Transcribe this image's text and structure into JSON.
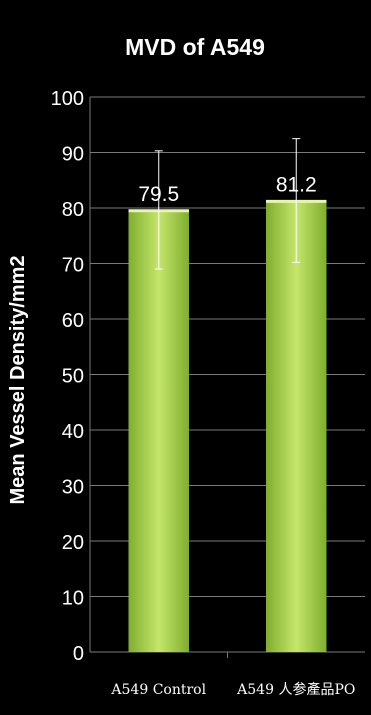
{
  "colors": {
    "background": "#000000",
    "bar_light": "#c5e66b",
    "bar_dark": "#7fae2e",
    "text": "#ffffff",
    "grid": "#7a7a7a",
    "error_bar": "#ffffff"
  },
  "chart_data": {
    "type": "bar",
    "title": "MVD of  A549",
    "xlabel": "",
    "ylabel": "Mean Vessel Density/mm2",
    "ylim": [
      0,
      100
    ],
    "yticks": [
      0,
      10,
      20,
      30,
      40,
      50,
      60,
      70,
      80,
      90,
      100
    ],
    "grid": true,
    "categories": [
      "A549 Control",
      "A549 人参產品PO"
    ],
    "values": [
      79.5,
      81.2
    ],
    "value_labels": [
      "79.5",
      "81.2"
    ],
    "error_bars": [
      {
        "low": 69.0,
        "high": 90.3
      },
      {
        "low": 70.2,
        "high": 92.5
      }
    ]
  }
}
